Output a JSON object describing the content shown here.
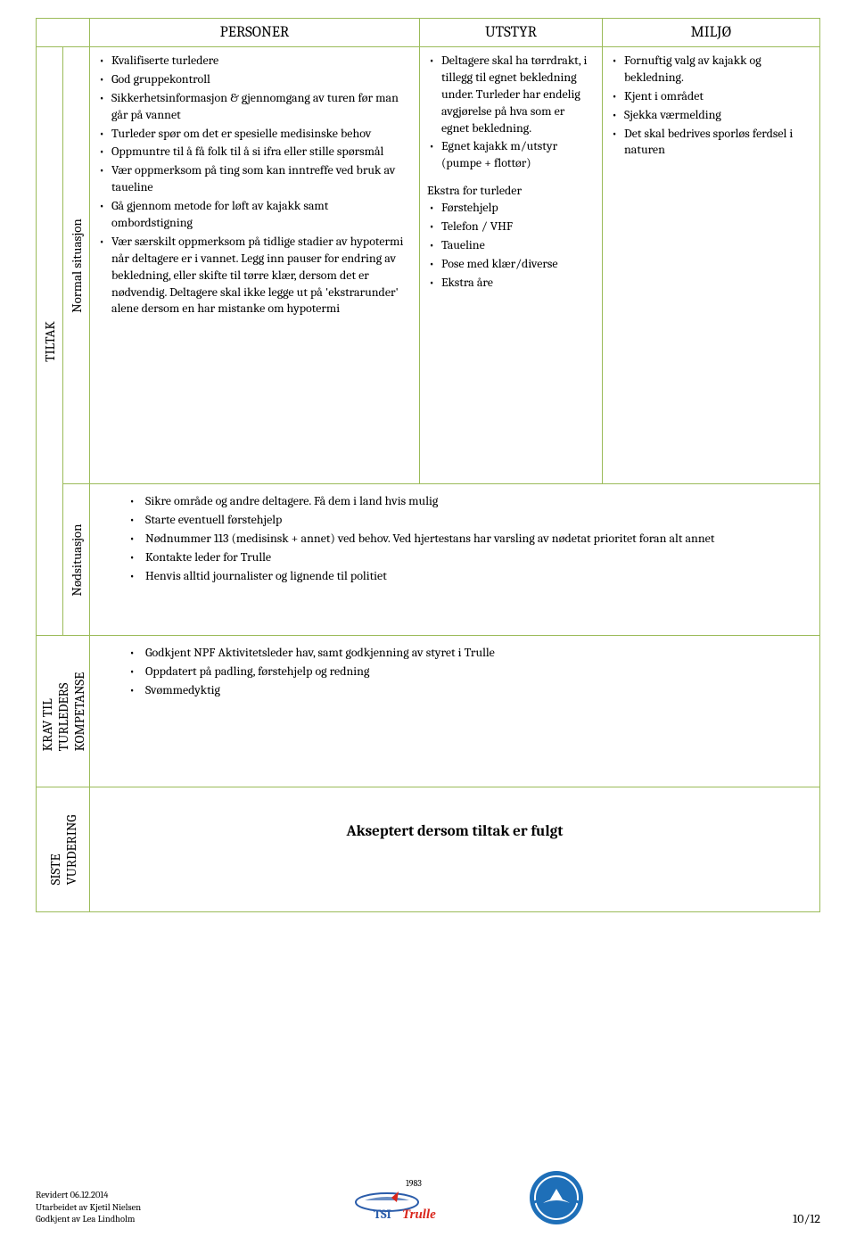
{
  "colors": {
    "border": "#9bbb59",
    "logo2_blue": "#1e6fb8",
    "logo2_white": "#ffffff"
  },
  "headers": {
    "personer": "PERSONER",
    "utstyr": "UTSTYR",
    "miljo": "MILJØ"
  },
  "rows": {
    "tiltak": "TILTAK",
    "normal": "Normal situasjon",
    "nod": "Nødsituasjon",
    "krav": "KRAV TIL\nTURLEDERS\nKOMPETANSE",
    "siste": "SISTE\nVURDERING"
  },
  "normal": {
    "personer": [
      "Kvalifiserte turledere",
      "God gruppekontroll",
      "Sikkerhetsinformasjon & gjennomgang av turen før man går på vannet",
      "Turleder spør om det er spesielle medisinske behov",
      "Oppmuntre til å få folk  til å si ifra eller stille spørsmål",
      "Vær oppmerksom på ting som kan inntreffe ved bruk av taueline",
      "Gå gjennom metode for løft av kajakk samt ombordstigning",
      "Vær særskilt oppmerksom på  tidlige stadier av hypotermi når deltagere er i vannet. Legg inn pauser for endring av bekledning, eller skifte til tørre klær, dersom det er nødvendig. Deltagere skal ikke legge ut på 'ekstrarunder' alene dersom en har mistanke om hypotermi"
    ],
    "utstyr": [
      "Deltagere skal ha tørrdrakt, i tillegg til egnet bekledning under. Turleder har endelig avgjørelse på hva som er egnet bekledning.",
      "Egnet kajakk m/utstyr (pumpe + flottør)"
    ],
    "utstyr_extra_label": "Ekstra for turleder",
    "utstyr_extra": [
      "Førstehjelp",
      "Telefon / VHF",
      "Taueline",
      "Pose med klær/diverse",
      "Ekstra åre"
    ],
    "miljo": [
      "Fornuftig valg av kajakk og bekledning.",
      "Kjent i området",
      "Sjekka værmelding",
      "Det skal bedrives sporløs ferdsel i naturen"
    ]
  },
  "nod": [
    "Sikre område og andre deltagere. Få dem i land hvis mulig",
    "Starte eventuell førstehjelp",
    "Nødnummer 113 (medisinsk + annet) ved behov. Ved hjertestans har varsling av nødetat prioritet foran alt annet",
    "Kontakte leder for Trulle",
    "Henvis alltid journalister og lignende til politiet"
  ],
  "krav": [
    "Godkjent NPF Aktivitetsleder hav, samt godkjenning av styret i Trulle",
    "Oppdatert på padling, førstehjelp og redning",
    "Svømmedyktig"
  ],
  "siste": "Akseptert dersom tiltak er fulgt",
  "footer": {
    "line1": "Revidert 06.12.2014",
    "line2": "Utarbeidet av Kjetil Nielsen",
    "line3": "Godkjent av Lea Lindholm",
    "page": "10/12",
    "logo1_year": "1983",
    "logo1_text": "TSI",
    "logo1_text2": "Trulle"
  }
}
